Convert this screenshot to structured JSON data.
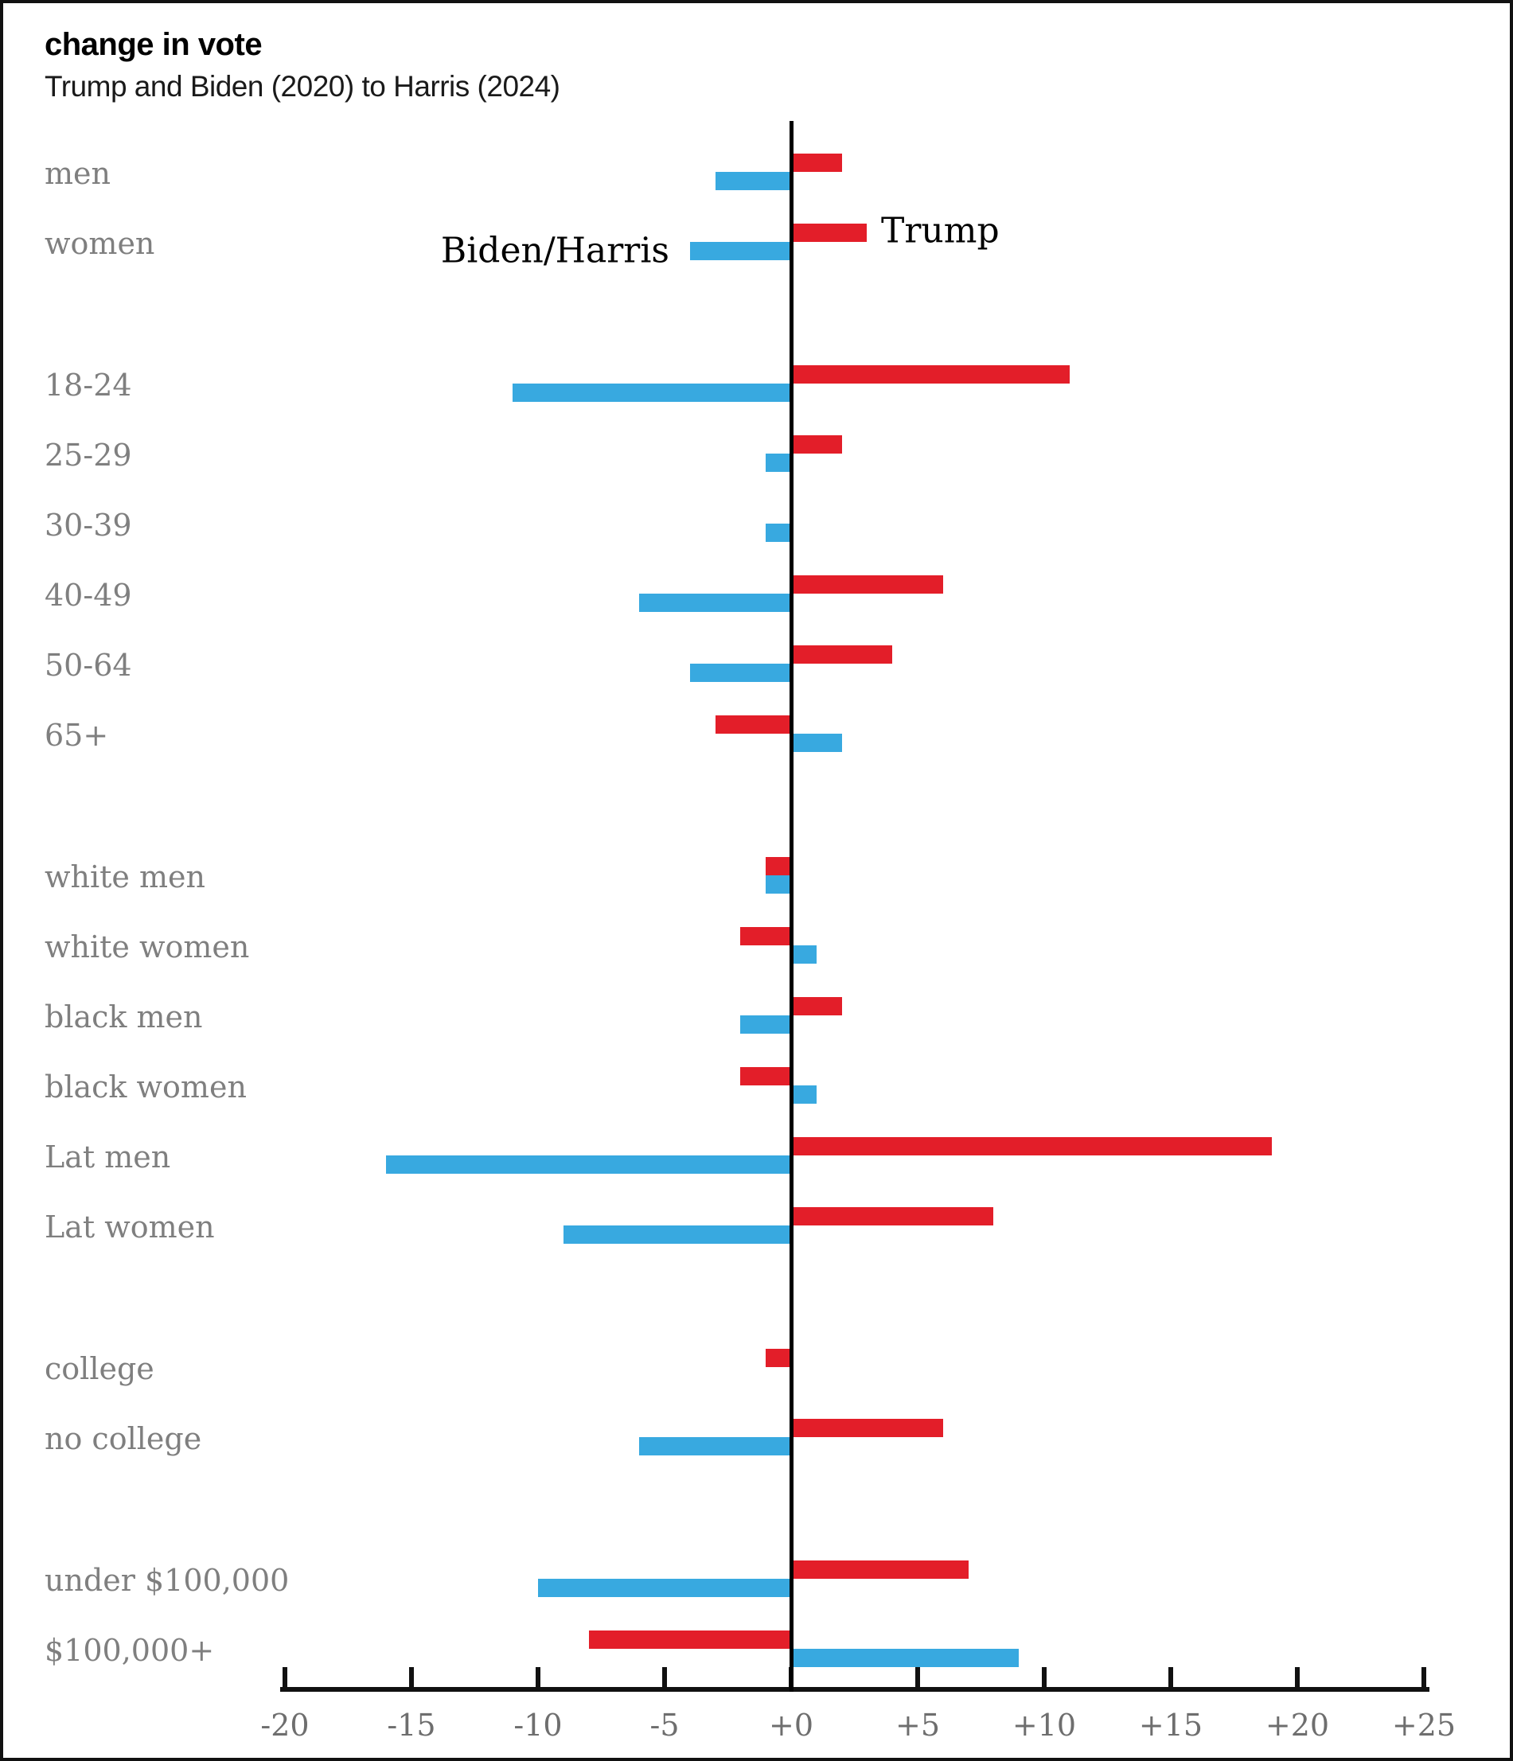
{
  "page": {
    "title": "change in vote",
    "subtitle": "Trump and Biden (2020) to Harris (2024)"
  },
  "colors": {
    "trump_red": "#E31E29",
    "biden_blue": "#38A9E0",
    "axis_black": "#111111",
    "category_label_gray": "#7f7f7f",
    "tick_label_gray": "#6e6e6e"
  },
  "chart_data": {
    "type": "bar",
    "diverging": true,
    "title": "change in vote",
    "subtitle": "Trump and Biden (2020) to Harris (2024)",
    "categories": [
      "men",
      "women",
      "18-24",
      "25-29",
      "30-39",
      "40-49",
      "50-64",
      "65+",
      "white men",
      "white women",
      "black men",
      "black women",
      "Lat men",
      "Lat women",
      "college",
      "no college",
      "under $100,000",
      "$100,000+"
    ],
    "series": [
      {
        "name": "Trump",
        "color": "#E31E29",
        "values": [
          2,
          3,
          11,
          2,
          0,
          6,
          4,
          -3,
          -1,
          -2,
          2,
          -2,
          19,
          8,
          -1,
          6,
          7,
          -8
        ]
      },
      {
        "name": "Biden/Harris",
        "color": "#38A9E0",
        "values": [
          -3,
          -4,
          -11,
          -1,
          -1,
          -6,
          -4,
          2,
          -1,
          1,
          -2,
          1,
          -16,
          -9,
          0,
          -6,
          -10,
          9
        ]
      }
    ],
    "group_breaks_after": [
      "women",
      "65+",
      "Lat women",
      "no college"
    ],
    "axis": {
      "xlim": [
        -20,
        25
      ],
      "tick_step": 5,
      "tick_labels": [
        "-20",
        "-15",
        "-10",
        "-5",
        "+0",
        "+5",
        "+10",
        "+15",
        "+20",
        "+25"
      ],
      "grid": false
    },
    "legend": {
      "position": "inline-women-row",
      "blue_label": "Biden/Harris",
      "red_label": "Trump"
    }
  }
}
